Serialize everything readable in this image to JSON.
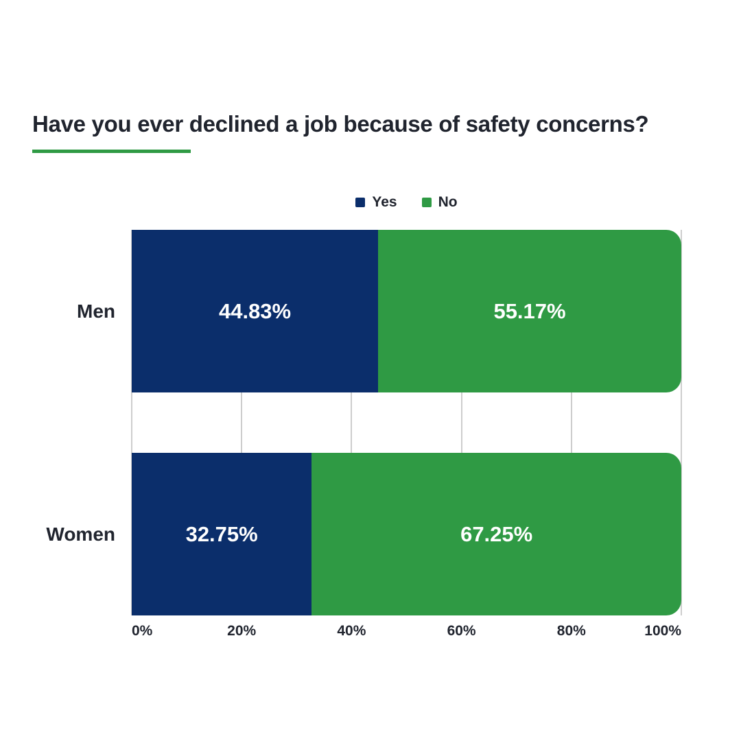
{
  "header": {
    "accent_color": "#2f9a44"
  },
  "chart_data": {
    "type": "bar",
    "variant": "horizontal-stacked",
    "title": "Have you ever declined a job because of safety concerns?",
    "categories": [
      "Men",
      "Women"
    ],
    "series": [
      {
        "name": "Yes",
        "color": "#0b2e6b",
        "values": [
          44.83,
          32.75
        ],
        "labels": [
          "44.83%",
          "32.75%"
        ]
      },
      {
        "name": "No",
        "color": "#2f9a44",
        "values": [
          55.17,
          67.25
        ],
        "labels": [
          "55.17%",
          "67.25%"
        ]
      }
    ],
    "xlim": [
      0,
      100
    ],
    "tick_values": [
      0,
      20,
      40,
      60,
      80,
      100
    ],
    "tick_labels": [
      "0%",
      "20%",
      "40%",
      "60%",
      "80%",
      "100%"
    ],
    "grid": true,
    "gridline_color": "#cdcdcd",
    "legend_position": "top",
    "value_label_color": "#ffffff",
    "text_color": "#20242e"
  }
}
